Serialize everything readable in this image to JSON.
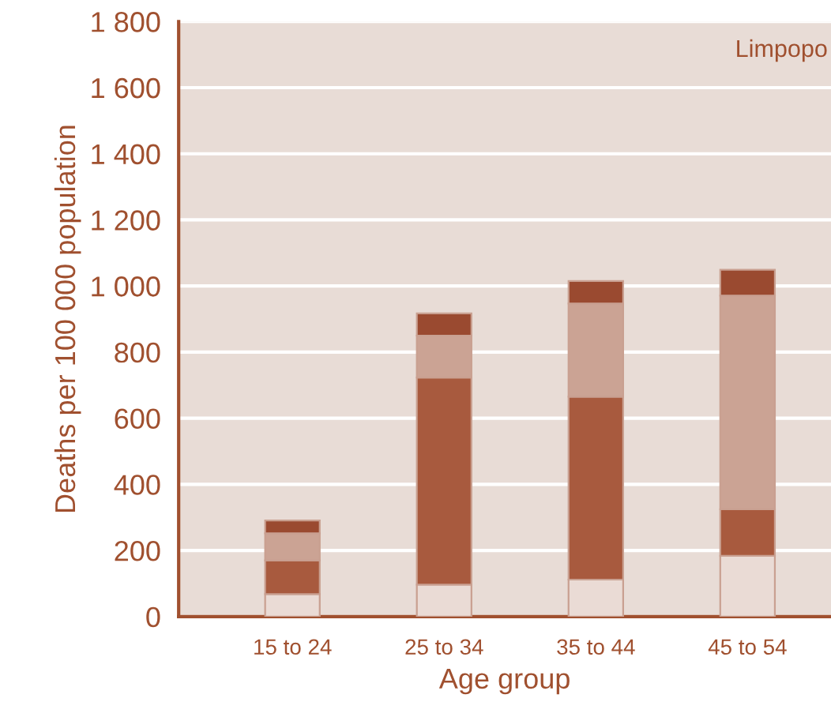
{
  "chart_data": {
    "type": "bar",
    "stacked": true,
    "xlabel": "Age group",
    "ylabel": "Deaths per 100 000 population",
    "annotations": [
      "Limpopo"
    ],
    "categories": [
      "15 to 24",
      "25 to 34",
      "35 to 44",
      "45 to 54"
    ],
    "series": [
      {
        "color": "#eadbd5",
        "values": [
          68,
          97,
          112,
          184
        ]
      },
      {
        "color": "#a85a3e",
        "values": [
          102,
          626,
          553,
          141
        ]
      },
      {
        "color": "#cba394",
        "values": [
          82,
          127,
          282,
          646
        ]
      },
      {
        "color": "#9a4a30",
        "values": [
          39,
          67,
          68,
          78
        ]
      }
    ],
    "ylim": [
      0,
      1800
    ],
    "yticks": [
      {
        "value": 0,
        "label": "0"
      },
      {
        "value": 200,
        "label": "200"
      },
      {
        "value": 400,
        "label": "400"
      },
      {
        "value": 600,
        "label": "600"
      },
      {
        "value": 800,
        "label": "800"
      },
      {
        "value": 1000,
        "label": "1 000"
      },
      {
        "value": 1200,
        "label": "1 200"
      },
      {
        "value": 1400,
        "label": "1 400"
      },
      {
        "value": 1600,
        "label": "1 600"
      },
      {
        "value": 1800,
        "label": "1 800"
      }
    ],
    "grid": "y"
  }
}
